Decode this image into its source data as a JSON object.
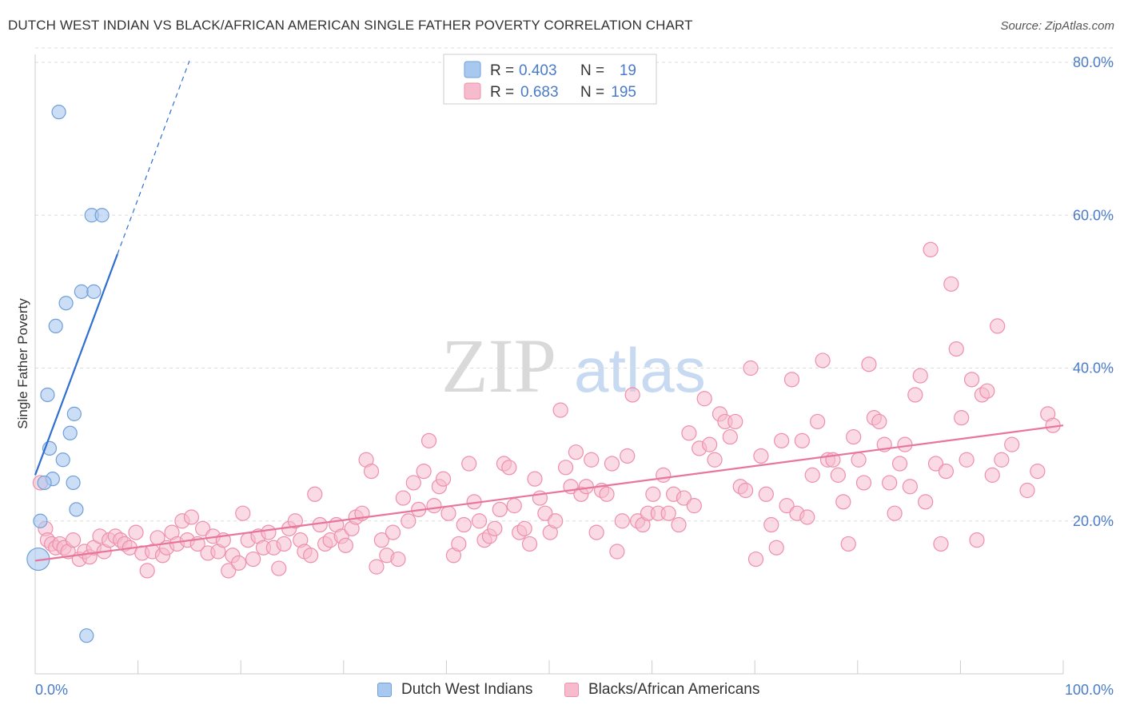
{
  "title": "DUTCH WEST INDIAN VS BLACK/AFRICAN AMERICAN SINGLE FATHER POVERTY CORRELATION CHART",
  "source": "Source: ZipAtlas.com",
  "watermark": {
    "zip": "ZIP",
    "atlas": "atlas"
  },
  "colors": {
    "blue_fill": "#a9c8f0",
    "blue_stroke": "#6f9fd8",
    "blue_line": "#2e6fd0",
    "pink_fill": "#f6bccd",
    "pink_stroke": "#ee8fab",
    "pink_line": "#e8759b",
    "tick_text": "#4a7bc8",
    "grid": "#dddddd"
  },
  "legend": {
    "rows": [
      {
        "r_label": "R =",
        "r_value": "0.403",
        "n_label": "N =",
        "n_value": "19",
        "series": "blue"
      },
      {
        "r_label": "R =",
        "r_value": "0.683",
        "n_label": "N =",
        "n_value": "195",
        "series": "pink"
      }
    ]
  },
  "bottom_legend": {
    "blue": "Dutch West Indians",
    "pink": "Blacks/African Americans"
  },
  "chart_data": {
    "type": "scatter",
    "title": "DUTCH WEST INDIAN VS BLACK/AFRICAN AMERICAN SINGLE FATHER POVERTY CORRELATION CHART",
    "xlabel": "",
    "ylabel": "Single Father Poverty",
    "xlim": [
      0,
      100
    ],
    "ylim": [
      0,
      80
    ],
    "x_tick_labels": [
      "0.0%",
      "100.0%"
    ],
    "y_ticks": [
      20,
      40,
      60,
      80
    ],
    "y_tick_labels": [
      "20.0%",
      "40.0%",
      "60.0%",
      "80.0%"
    ],
    "grid": "horizontal dashed",
    "legend_position": "top-center",
    "series": [
      {
        "name": "Dutch West Indians",
        "color": "blue",
        "R": 0.403,
        "N": 19,
        "trend": {
          "x0": 0,
          "y0": 26.0,
          "x1": 8.0,
          "y1": 54.9,
          "dash_to_x": 15.0
        },
        "points": [
          [
            2.3,
            73.5
          ],
          [
            5.5,
            60.0
          ],
          [
            6.5,
            60.0
          ],
          [
            3.0,
            48.5
          ],
          [
            4.5,
            50.0
          ],
          [
            5.7,
            50.0
          ],
          [
            2.0,
            45.5
          ],
          [
            1.2,
            36.5
          ],
          [
            3.8,
            34.0
          ],
          [
            3.4,
            31.5
          ],
          [
            1.4,
            29.5
          ],
          [
            2.7,
            28.0
          ],
          [
            1.7,
            25.5
          ],
          [
            0.9,
            25.0
          ],
          [
            3.7,
            25.0
          ],
          [
            4.0,
            21.5
          ],
          [
            0.5,
            20.0
          ],
          [
            0.3,
            15.0
          ],
          [
            5.0,
            5.0
          ]
        ]
      },
      {
        "name": "Blacks/African Americans",
        "color": "pink",
        "R": 0.683,
        "N": 195,
        "trend": {
          "x0": 0,
          "y0": 14.8,
          "x1": 100,
          "y1": 32.5
        },
        "points": [
          [
            0.5,
            25.0
          ],
          [
            1.0,
            19.0
          ],
          [
            1.2,
            17.5
          ],
          [
            1.6,
            17.0
          ],
          [
            2.0,
            16.5
          ],
          [
            2.4,
            17.0
          ],
          [
            2.8,
            16.5
          ],
          [
            3.2,
            16.0
          ],
          [
            3.7,
            17.5
          ],
          [
            4.3,
            15.0
          ],
          [
            4.8,
            16.0
          ],
          [
            5.3,
            15.3
          ],
          [
            5.7,
            16.5
          ],
          [
            6.3,
            18.0
          ],
          [
            6.7,
            16.0
          ],
          [
            7.2,
            17.5
          ],
          [
            7.8,
            18.0
          ],
          [
            8.3,
            17.5
          ],
          [
            8.7,
            17.0
          ],
          [
            9.2,
            16.5
          ],
          [
            9.8,
            18.5
          ],
          [
            10.4,
            15.8
          ],
          [
            10.9,
            13.5
          ],
          [
            11.4,
            16.0
          ],
          [
            11.9,
            17.8
          ],
          [
            12.4,
            15.5
          ],
          [
            12.8,
            16.5
          ],
          [
            13.3,
            18.5
          ],
          [
            13.8,
            17.0
          ],
          [
            14.3,
            20.0
          ],
          [
            14.8,
            17.5
          ],
          [
            15.2,
            20.5
          ],
          [
            15.8,
            17.0
          ],
          [
            16.3,
            19.0
          ],
          [
            16.8,
            15.8
          ],
          [
            17.3,
            18.0
          ],
          [
            17.8,
            16.0
          ],
          [
            18.3,
            17.5
          ],
          [
            18.8,
            13.5
          ],
          [
            19.2,
            15.5
          ],
          [
            19.8,
            14.5
          ],
          [
            20.2,
            21.0
          ],
          [
            20.7,
            17.5
          ],
          [
            21.2,
            15.0
          ],
          [
            21.7,
            18.0
          ],
          [
            22.2,
            16.5
          ],
          [
            22.7,
            18.5
          ],
          [
            23.2,
            16.5
          ],
          [
            23.7,
            13.8
          ],
          [
            24.2,
            17.0
          ],
          [
            24.7,
            19.0
          ],
          [
            25.3,
            20.0
          ],
          [
            25.8,
            17.5
          ],
          [
            26.2,
            16.0
          ],
          [
            26.8,
            15.5
          ],
          [
            27.2,
            23.5
          ],
          [
            27.7,
            19.5
          ],
          [
            28.2,
            17.0
          ],
          [
            28.7,
            17.5
          ],
          [
            29.3,
            19.5
          ],
          [
            29.8,
            18.0
          ],
          [
            30.2,
            16.8
          ],
          [
            30.8,
            19.0
          ],
          [
            31.2,
            20.5
          ],
          [
            31.8,
            21.0
          ],
          [
            32.2,
            28.0
          ],
          [
            32.7,
            26.5
          ],
          [
            33.2,
            14.0
          ],
          [
            33.7,
            17.5
          ],
          [
            34.2,
            15.5
          ],
          [
            34.8,
            18.5
          ],
          [
            35.3,
            15.0
          ],
          [
            35.8,
            23.0
          ],
          [
            36.3,
            20.0
          ],
          [
            36.8,
            25.0
          ],
          [
            37.3,
            21.5
          ],
          [
            37.8,
            26.5
          ],
          [
            38.3,
            30.5
          ],
          [
            38.8,
            22.0
          ],
          [
            39.3,
            24.5
          ],
          [
            39.7,
            25.5
          ],
          [
            40.2,
            21.0
          ],
          [
            40.7,
            15.5
          ],
          [
            41.2,
            17.0
          ],
          [
            41.7,
            19.5
          ],
          [
            42.2,
            27.5
          ],
          [
            42.7,
            22.5
          ],
          [
            43.2,
            20.0
          ],
          [
            43.7,
            17.5
          ],
          [
            44.2,
            18.0
          ],
          [
            44.7,
            19.0
          ],
          [
            45.2,
            21.5
          ],
          [
            45.6,
            27.5
          ],
          [
            46.1,
            27.0
          ],
          [
            46.6,
            22.0
          ],
          [
            47.1,
            18.5
          ],
          [
            47.6,
            19.0
          ],
          [
            48.1,
            17.0
          ],
          [
            48.6,
            25.5
          ],
          [
            49.1,
            23.0
          ],
          [
            49.6,
            21.0
          ],
          [
            50.1,
            18.5
          ],
          [
            50.6,
            20.0
          ],
          [
            51.1,
            34.5
          ],
          [
            51.6,
            27.0
          ],
          [
            52.1,
            24.5
          ],
          [
            52.6,
            29.0
          ],
          [
            53.1,
            23.5
          ],
          [
            53.6,
            24.5
          ],
          [
            54.1,
            28.0
          ],
          [
            54.6,
            18.5
          ],
          [
            55.1,
            24.0
          ],
          [
            55.6,
            23.5
          ],
          [
            56.1,
            27.5
          ],
          [
            56.6,
            16.0
          ],
          [
            57.1,
            20.0
          ],
          [
            57.6,
            28.5
          ],
          [
            58.1,
            36.5
          ],
          [
            58.6,
            20.0
          ],
          [
            59.1,
            19.5
          ],
          [
            59.6,
            21.0
          ],
          [
            60.1,
            23.5
          ],
          [
            60.6,
            21.0
          ],
          [
            61.1,
            26.0
          ],
          [
            61.6,
            21.0
          ],
          [
            62.1,
            23.5
          ],
          [
            62.6,
            19.5
          ],
          [
            63.1,
            23.0
          ],
          [
            63.6,
            31.5
          ],
          [
            64.1,
            22.0
          ],
          [
            64.6,
            29.5
          ],
          [
            65.1,
            36.0
          ],
          [
            65.6,
            30.0
          ],
          [
            66.1,
            28.0
          ],
          [
            66.6,
            34.0
          ],
          [
            67.1,
            33.0
          ],
          [
            67.6,
            31.0
          ],
          [
            68.1,
            33.0
          ],
          [
            68.6,
            24.5
          ],
          [
            69.1,
            24.0
          ],
          [
            69.6,
            40.0
          ],
          [
            70.1,
            15.0
          ],
          [
            70.6,
            28.5
          ],
          [
            71.1,
            23.5
          ],
          [
            71.6,
            19.5
          ],
          [
            72.1,
            16.5
          ],
          [
            72.6,
            30.5
          ],
          [
            73.1,
            22.0
          ],
          [
            73.6,
            38.5
          ],
          [
            74.1,
            21.0
          ],
          [
            74.6,
            30.5
          ],
          [
            75.1,
            20.5
          ],
          [
            75.6,
            26.0
          ],
          [
            76.1,
            33.0
          ],
          [
            76.6,
            41.0
          ],
          [
            77.1,
            28.0
          ],
          [
            77.6,
            28.0
          ],
          [
            78.1,
            26.0
          ],
          [
            78.6,
            22.5
          ],
          [
            79.1,
            17.0
          ],
          [
            79.6,
            31.0
          ],
          [
            80.1,
            28.0
          ],
          [
            80.6,
            25.0
          ],
          [
            81.1,
            40.5
          ],
          [
            81.6,
            33.5
          ],
          [
            82.1,
            33.0
          ],
          [
            82.6,
            30.0
          ],
          [
            83.1,
            25.0
          ],
          [
            83.6,
            21.0
          ],
          [
            84.1,
            27.5
          ],
          [
            84.6,
            30.0
          ],
          [
            85.1,
            24.5
          ],
          [
            85.6,
            36.5
          ],
          [
            86.1,
            39.0
          ],
          [
            86.6,
            22.5
          ],
          [
            87.1,
            55.5
          ],
          [
            87.6,
            27.5
          ],
          [
            88.1,
            17.0
          ],
          [
            88.6,
            26.5
          ],
          [
            89.1,
            51.0
          ],
          [
            89.6,
            42.5
          ],
          [
            90.1,
            33.5
          ],
          [
            90.6,
            28.0
          ],
          [
            91.1,
            38.5
          ],
          [
            91.6,
            17.5
          ],
          [
            92.1,
            36.5
          ],
          [
            92.6,
            37.0
          ],
          [
            93.1,
            26.0
          ],
          [
            93.6,
            45.5
          ],
          [
            98.5,
            34.0
          ],
          [
            96.5,
            24.0
          ],
          [
            97.5,
            26.5
          ],
          [
            95.0,
            30.0
          ],
          [
            94.0,
            28.0
          ],
          [
            99.0,
            32.5
          ]
        ]
      }
    ]
  }
}
